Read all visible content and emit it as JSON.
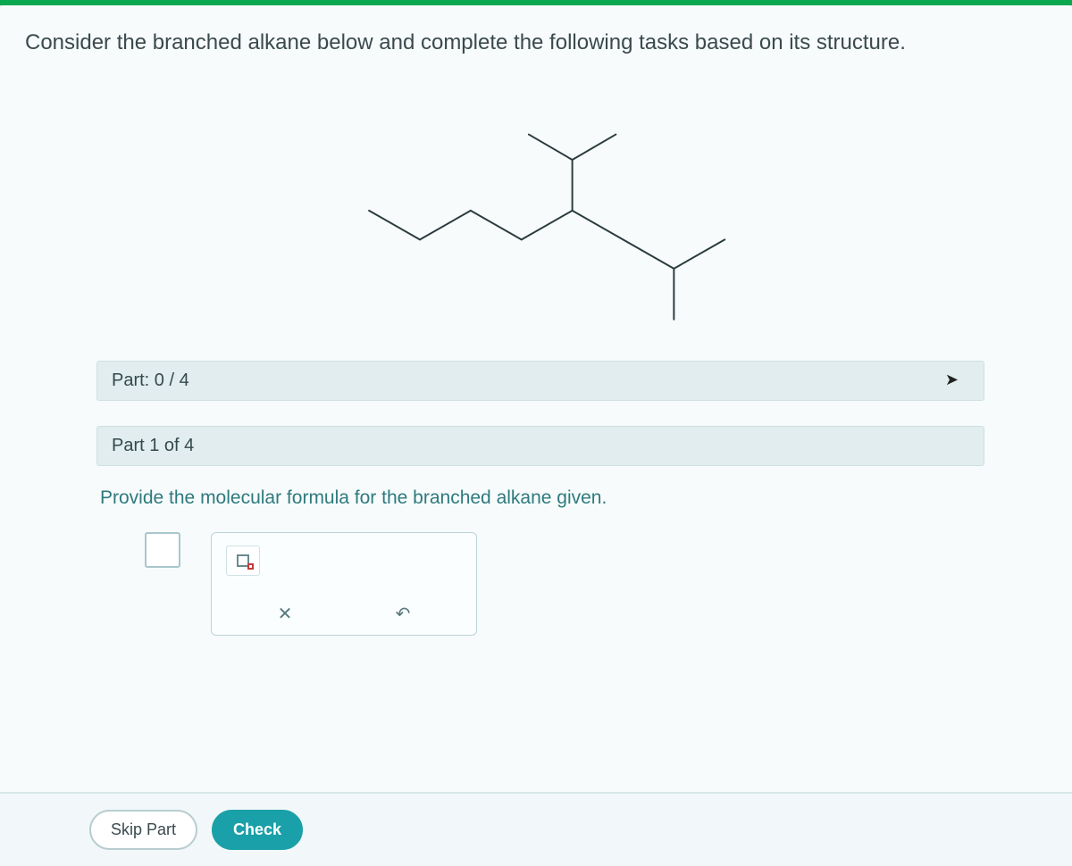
{
  "colors": {
    "top_bar": "#0aa84f",
    "page_bg": "#f7fbfc",
    "text_main": "#3a4a4d",
    "teal_text": "#2e7a7d",
    "panel_border": "#bcd4d8",
    "bar_bg": "#e1edef",
    "check_btn": "#1aa0a8"
  },
  "prompt": "Consider the branched alkane below and complete the following tasks based on its structure.",
  "molecule": {
    "type": "skeletal-structure",
    "stroke": "#2b3a3c",
    "stroke_width": 2.4,
    "segments": [
      [
        70,
        150,
        140,
        190
      ],
      [
        140,
        190,
        210,
        150
      ],
      [
        210,
        150,
        280,
        190
      ],
      [
        280,
        190,
        350,
        150
      ],
      [
        350,
        150,
        420,
        190
      ],
      [
        420,
        190,
        490,
        230
      ],
      [
        490,
        230,
        560,
        190
      ],
      [
        350,
        150,
        350,
        80
      ],
      [
        350,
        80,
        290,
        45
      ],
      [
        350,
        80,
        410,
        45
      ],
      [
        490,
        230,
        490,
        300
      ]
    ]
  },
  "parts": {
    "progress_label": "Part: 0 / 4",
    "current_label": "Part 1 of 4"
  },
  "instruction": "Provide the molecular formula for the branched alkane given.",
  "tools": {
    "clear_label": "✕",
    "undo_label": "↶"
  },
  "footer": {
    "skip_label": "Skip Part",
    "check_label": "Check"
  }
}
